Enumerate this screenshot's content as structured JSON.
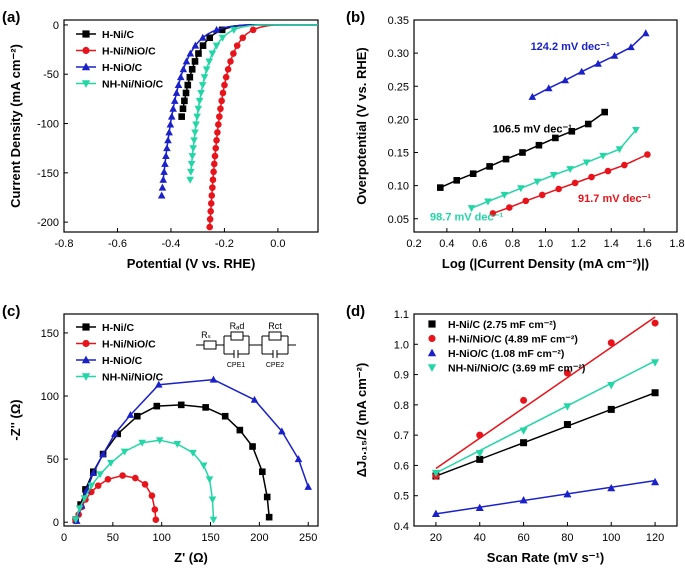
{
  "colors": {
    "black": "#000000",
    "red": "#e8141b",
    "blue": "#1a21c8",
    "cyan": "#23d6a5"
  },
  "chart_data": [
    {
      "panel": "(a)",
      "type": "line",
      "title": "",
      "xlabel": "Potential (V vs. RHE)",
      "ylabel": "Current Density (mA cm⁻²)",
      "xlim": [
        -0.8,
        0.15
      ],
      "ylim": [
        -210,
        5
      ],
      "xticks": [
        "-0.8",
        "-0.6",
        "-0.4",
        "-0.2",
        "0.0"
      ],
      "xtick_values": [
        -0.8,
        -0.6,
        -0.4,
        -0.2,
        0.0
      ],
      "yticks": [
        "0",
        "-50",
        "-100",
        "-150",
        "-200"
      ],
      "ytick_values": [
        0,
        -50,
        -100,
        -150,
        -200
      ],
      "legend_position": "top-left",
      "series": [
        {
          "name": "H-Ni/C",
          "color": "black",
          "marker": "square",
          "e0": -0.11,
          "b": 0.055,
          "cap": -0.36
        },
        {
          "name": "H-Ni/NiO/C",
          "color": "red",
          "marker": "circle",
          "e0": -0.01,
          "b": 0.046,
          "cap": -0.26
        },
        {
          "name": "H-NiO/C",
          "color": "blue",
          "marker": "triangle-up",
          "e0": -0.12,
          "b": 0.061,
          "cap": -0.435
        },
        {
          "name": "NH-Ni/NiO/C",
          "color": "cyan",
          "marker": "triangle-down",
          "e0": -0.075,
          "b": 0.05,
          "cap": -0.33
        }
      ]
    },
    {
      "panel": "(b)",
      "type": "line",
      "title": "",
      "xlabel": "Log (|Current Density (mA cm⁻²)|)",
      "ylabel": "Overpotential (V vs. RHE)",
      "xlim": [
        0.2,
        1.8
      ],
      "ylim": [
        0.03,
        0.35
      ],
      "xticks": [
        "0.2",
        "0.4",
        "0.6",
        "0.8",
        "1.0",
        "1.2",
        "1.4",
        "1.6",
        "1.8"
      ],
      "xtick_values": [
        0.2,
        0.4,
        0.6,
        0.8,
        1.0,
        1.2,
        1.4,
        1.6,
        1.8
      ],
      "yticks": [
        "0.05",
        "0.10",
        "0.15",
        "0.20",
        "0.25",
        "0.30",
        "0.35"
      ],
      "ytick_values": [
        0.05,
        0.1,
        0.15,
        0.2,
        0.25,
        0.3,
        0.35
      ],
      "annotations": [
        {
          "text": "124.2 mV dec⁻¹",
          "color": "blue",
          "x": 1.15,
          "y": 0.305
        },
        {
          "text": "106.5 mV dec⁻¹",
          "color": "black",
          "x": 0.92,
          "y": 0.18
        },
        {
          "text": "91.7 mV dec⁻¹",
          "color": "red",
          "x": 1.42,
          "y": 0.075
        },
        {
          "text": "98.7 mV dec⁻¹",
          "color": "cyan",
          "x": 0.52,
          "y": 0.047
        }
      ],
      "series": [
        {
          "name": "H-Ni/C",
          "color": "black",
          "marker": "square",
          "x": [
            0.36,
            0.46,
            0.56,
            0.66,
            0.76,
            0.86,
            0.96,
            1.06,
            1.16,
            1.26,
            1.36
          ],
          "y": [
            0.097,
            0.108,
            0.118,
            0.129,
            0.14,
            0.15,
            0.161,
            0.172,
            0.182,
            0.193,
            0.211
          ]
        },
        {
          "name": "H-Ni/NiO/C",
          "color": "red",
          "marker": "circle",
          "x": [
            0.68,
            0.78,
            0.88,
            0.98,
            1.08,
            1.18,
            1.28,
            1.38,
            1.48,
            1.62
          ],
          "y": [
            0.058,
            0.067,
            0.077,
            0.086,
            0.095,
            0.104,
            0.113,
            0.122,
            0.131,
            0.147
          ]
        },
        {
          "name": "H-NiO/C",
          "color": "blue",
          "marker": "triangle-up",
          "x": [
            0.92,
            1.02,
            1.12,
            1.22,
            1.32,
            1.42,
            1.52,
            1.61
          ],
          "y": [
            0.234,
            0.247,
            0.259,
            0.272,
            0.284,
            0.296,
            0.309,
            0.33
          ]
        },
        {
          "name": "NH-Ni/NiO/C",
          "color": "cyan",
          "marker": "triangle-down",
          "x": [
            0.55,
            0.65,
            0.75,
            0.85,
            0.95,
            1.05,
            1.15,
            1.25,
            1.35,
            1.45,
            1.55
          ],
          "y": [
            0.066,
            0.076,
            0.086,
            0.096,
            0.106,
            0.116,
            0.125,
            0.135,
            0.145,
            0.155,
            0.184
          ]
        }
      ]
    },
    {
      "panel": "(c)",
      "type": "scatter",
      "title": "",
      "xlabel": "Z' (Ω)",
      "ylabel": "-Z'' (Ω)",
      "xlim": [
        0,
        260
      ],
      "ylim": [
        -3,
        165
      ],
      "xticks": [
        "0",
        "50",
        "100",
        "150",
        "200",
        "250"
      ],
      "xtick_values": [
        0,
        50,
        100,
        150,
        200,
        250
      ],
      "yticks": [
        "0",
        "50",
        "100",
        "150"
      ],
      "ytick_values": [
        0,
        50,
        100,
        150
      ],
      "legend_position": "top-left",
      "circuit_labels": {
        "rs": "Rₛ",
        "rad": "Rₐd",
        "rct": "Rct",
        "cpe1": "CPE1",
        "cpe2": "CPE2"
      },
      "series": [
        {
          "name": "H-Ni/C",
          "color": "black",
          "marker": "square",
          "x": [
            12,
            17,
            22,
            30,
            40,
            55,
            75,
            95,
            120,
            145,
            165,
            180,
            193,
            203,
            208,
            210
          ],
          "y": [
            2,
            14,
            26,
            40,
            54,
            70,
            84,
            92,
            93,
            91,
            84,
            73,
            60,
            40,
            20,
            4
          ]
        },
        {
          "name": "H-Ni/NiO/C",
          "color": "red",
          "marker": "circle",
          "x": [
            12,
            15,
            18,
            22,
            28,
            35,
            45,
            60,
            73,
            83,
            90,
            93,
            94
          ],
          "y": [
            1,
            6,
            12,
            18,
            24,
            29,
            34,
            37,
            35,
            30,
            21,
            10,
            2
          ]
        },
        {
          "name": "H-NiO/C",
          "color": "blue",
          "marker": "triangle-up",
          "x": [
            13,
            18,
            23,
            30,
            40,
            52,
            68,
            97,
            153,
            195,
            223,
            240,
            250
          ],
          "y": [
            1,
            13,
            25,
            39,
            54,
            70,
            85,
            109,
            113,
            97,
            72,
            50,
            28
          ]
        },
        {
          "name": "NH-Ni/NiO/C",
          "color": "cyan",
          "marker": "triangle-down",
          "x": [
            12,
            16,
            21,
            28,
            37,
            48,
            62,
            80,
            98,
            116,
            132,
            143,
            149,
            152,
            153
          ],
          "y": [
            2,
            11,
            19,
            29,
            38,
            47,
            56,
            63,
            65,
            62,
            55,
            45,
            34,
            18,
            2
          ]
        }
      ]
    },
    {
      "panel": "(d)",
      "type": "scatter",
      "title": "",
      "xlabel": "Scan Rate (mV s⁻¹)",
      "ylabel": "ΔJ₀.₁₅/2 (mA cm⁻²)",
      "xlim": [
        10,
        130
      ],
      "ylim": [
        0.4,
        1.1
      ],
      "xticks": [
        "20",
        "40",
        "60",
        "80",
        "100",
        "120"
      ],
      "xtick_values": [
        20,
        40,
        60,
        80,
        100,
        120
      ],
      "yticks": [
        "0.4",
        "0.5",
        "0.6",
        "0.7",
        "0.8",
        "0.9",
        "1.0",
        "1.1"
      ],
      "ytick_values": [
        0.4,
        0.5,
        0.6,
        0.7,
        0.8,
        0.9,
        1.0,
        1.1
      ],
      "legend_position": "top-left",
      "series": [
        {
          "name": "H-Ni/C (2.75 mF cm⁻²)",
          "color": "black",
          "marker": "square",
          "x": [
            20,
            40,
            60,
            80,
            100,
            120
          ],
          "y": [
            0.565,
            0.62,
            0.675,
            0.735,
            0.785,
            0.84
          ],
          "fit": [
            0.565,
            0.84
          ]
        },
        {
          "name": "H-Ni/NiO/C (4.89 mF cm⁻²)",
          "color": "red",
          "marker": "circle",
          "x": [
            20,
            40,
            60,
            80,
            100,
            120
          ],
          "y": [
            0.565,
            0.7,
            0.815,
            0.905,
            1.005,
            1.07
          ],
          "fit": [
            0.59,
            1.09
          ]
        },
        {
          "name": "H-NiO/C (1.08 mF cm⁻²)",
          "color": "blue",
          "marker": "triangle-up",
          "x": [
            20,
            40,
            60,
            80,
            100,
            120
          ],
          "y": [
            0.44,
            0.46,
            0.485,
            0.505,
            0.525,
            0.545
          ],
          "fit": [
            0.44,
            0.55
          ]
        },
        {
          "name": "NH-Ni/NiO/C (3.69 mF cm⁻²)",
          "color": "cyan",
          "marker": "triangle-down",
          "x": [
            20,
            40,
            60,
            80,
            100,
            120
          ],
          "y": [
            0.575,
            0.64,
            0.715,
            0.795,
            0.865,
            0.94
          ],
          "fit": [
            0.575,
            0.945
          ]
        }
      ]
    }
  ]
}
